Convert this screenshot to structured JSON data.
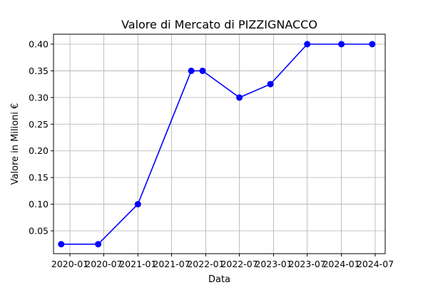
{
  "chart_data": {
    "type": "line",
    "title": "Valore di Mercato di PIZZIGNACCO",
    "xlabel": "Data",
    "ylabel": "Valore in Milioni €",
    "x_ticks": [
      "2020-01",
      "2020-07",
      "2021-01",
      "2021-07",
      "2022-01",
      "2022-07",
      "2023-01",
      "2023-07",
      "2024-01",
      "2024-07"
    ],
    "y_ticks": [
      "0.05",
      "0.10",
      "0.15",
      "0.20",
      "0.25",
      "0.30",
      "0.35",
      "0.40"
    ],
    "grid": true,
    "color": "#0000ff",
    "series": [
      {
        "x": [
          "2019-11-15",
          "2020-06-01",
          "2021-01-01",
          "2021-10-15",
          "2021-12-15",
          "2022-07-01",
          "2022-12-15",
          "2023-07-01",
          "2024-01-01",
          "2024-06-15"
        ],
        "values": [
          0.025,
          0.025,
          0.1,
          0.35,
          0.35,
          0.3,
          0.325,
          0.4,
          0.4,
          0.4
        ]
      }
    ]
  }
}
